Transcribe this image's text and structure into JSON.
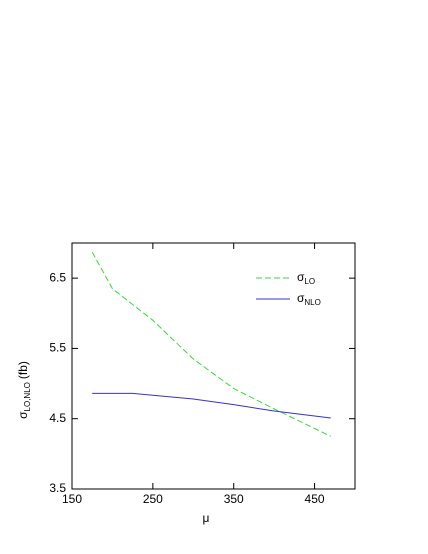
{
  "chart_data": {
    "type": "line",
    "x_label": "μ",
    "y_label": {
      "symbol": "σ",
      "subscript": "LO,NLO",
      "unit": "(fb)"
    },
    "xlim": [
      150,
      500
    ],
    "xticks": [
      150,
      250,
      350,
      450
    ],
    "ylim": [
      3.5,
      7.0
    ],
    "yticks": [
      3.5,
      4.5,
      5.5,
      6.5
    ],
    "series": [
      {
        "name": "σ",
        "subscript": "LO",
        "color": "#33dd33",
        "dash": true,
        "x": [
          175,
          200,
          250,
          300,
          350,
          400,
          470
        ],
        "values": [
          6.87,
          6.35,
          5.9,
          5.35,
          4.93,
          4.64,
          4.25
        ]
      },
      {
        "name": "σ",
        "subscript": "NLO",
        "color": "#3333cc",
        "dash": false,
        "x": [
          175,
          225,
          300,
          350,
          400,
          470
        ],
        "values": [
          4.86,
          4.86,
          4.78,
          4.7,
          4.61,
          4.51
        ]
      }
    ]
  }
}
